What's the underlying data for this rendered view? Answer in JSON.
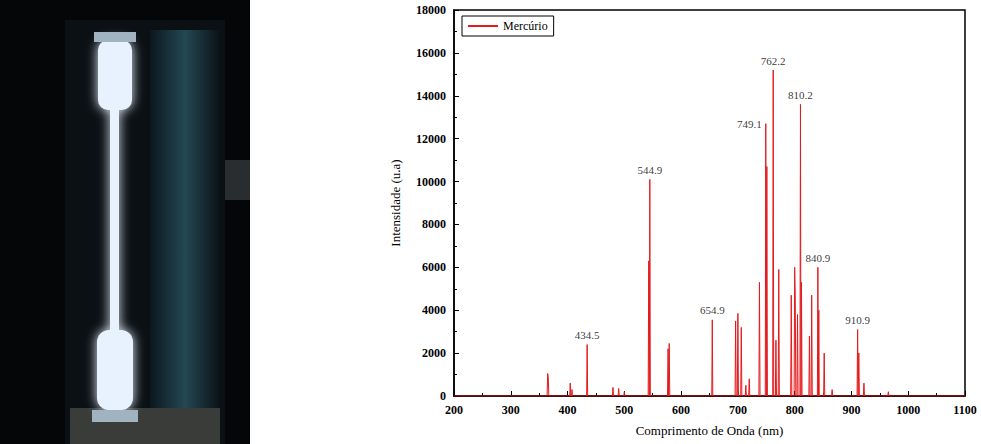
{
  "chart_data": {
    "type": "line",
    "x_label": "Comprimento de Onda (nm)",
    "y_label": "Intensidade (u.a)",
    "series": [
      {
        "name": "Mercúrio",
        "color": "#e31a1c",
        "x": [
          200,
          364,
          365,
          366,
          367,
          403.8,
          404.7,
          405.6,
          407,
          407.8,
          408.6,
          433.6,
          434.5,
          435.4,
          479,
          480,
          481,
          489,
          490,
          491,
          499,
          500,
          501,
          542,
          543,
          544,
          544.9,
          545.8,
          576,
          577,
          578,
          579,
          580,
          654,
          654.9,
          655.8,
          695,
          696,
          697,
          699,
          700,
          701,
          705,
          706,
          707,
          713,
          714,
          715,
          719,
          720,
          721,
          737,
          738,
          739,
          748.2,
          749.1,
          750,
          751,
          752,
          761.3,
          762.2,
          763.1,
          766,
          767,
          768,
          771,
          772,
          773,
          793,
          794,
          795,
          799,
          800,
          801,
          802,
          804,
          805,
          806,
          809.3,
          810.2,
          811.1,
          812,
          813,
          825,
          826,
          827,
          829,
          830,
          831,
          840,
          840.9,
          841.8,
          842.5,
          843.3,
          851,
          852,
          853,
          865,
          866,
          867,
          909.9,
          910.9,
          911.8,
          913,
          914,
          921,
          922,
          923,
          964,
          965,
          966,
          1100
        ],
        "values": [
          0,
          0,
          1050,
          900,
          0,
          0,
          600,
          0,
          0,
          300,
          0,
          0,
          2400,
          0,
          0,
          400,
          0,
          0,
          350,
          0,
          0,
          200,
          0,
          0,
          6300,
          0,
          10100,
          0,
          0,
          2200,
          0,
          2450,
          0,
          0,
          3550,
          0,
          0,
          3500,
          0,
          0,
          3850,
          0,
          0,
          3200,
          0,
          0,
          500,
          0,
          0,
          800,
          0,
          0,
          5300,
          0,
          0,
          12700,
          0,
          10700,
          0,
          0,
          15200,
          0,
          0,
          2600,
          0,
          0,
          5900,
          0,
          0,
          4700,
          0,
          0,
          6000,
          4700,
          0,
          0,
          3800,
          0,
          0,
          13600,
          0,
          5300,
          0,
          0,
          2800,
          0,
          0,
          4700,
          0,
          0,
          6000,
          0,
          4000,
          0,
          0,
          2000,
          0,
          0,
          300,
          0,
          0,
          3100,
          0,
          2000,
          0,
          0,
          600,
          0,
          0,
          200,
          0,
          0
        ]
      }
    ],
    "annotations": [
      {
        "text": "434.5",
        "x": 434.5,
        "y": 2400
      },
      {
        "text": "544.9",
        "x": 544.9,
        "y": 10100
      },
      {
        "text": "654.9",
        "x": 654.9,
        "y": 3550
      },
      {
        "text": "749.1",
        "x": 749.1,
        "y": 12700
      },
      {
        "text": "762.2",
        "x": 762.2,
        "y": 15200
      },
      {
        "text": "810.2",
        "x": 810.2,
        "y": 13600
      },
      {
        "text": "840.9",
        "x": 840.9,
        "y": 6000
      },
      {
        "text": "910.9",
        "x": 910.9,
        "y": 3100
      }
    ],
    "xlim": [
      200,
      1100
    ],
    "xticks": [
      200,
      300,
      400,
      500,
      600,
      700,
      800,
      900,
      1000,
      1100
    ],
    "ylim": [
      0,
      18000
    ],
    "yticks": [
      0,
      2000,
      4000,
      6000,
      8000,
      10000,
      12000,
      14000,
      16000,
      18000
    ],
    "grid": false,
    "legend": "upper left"
  }
}
